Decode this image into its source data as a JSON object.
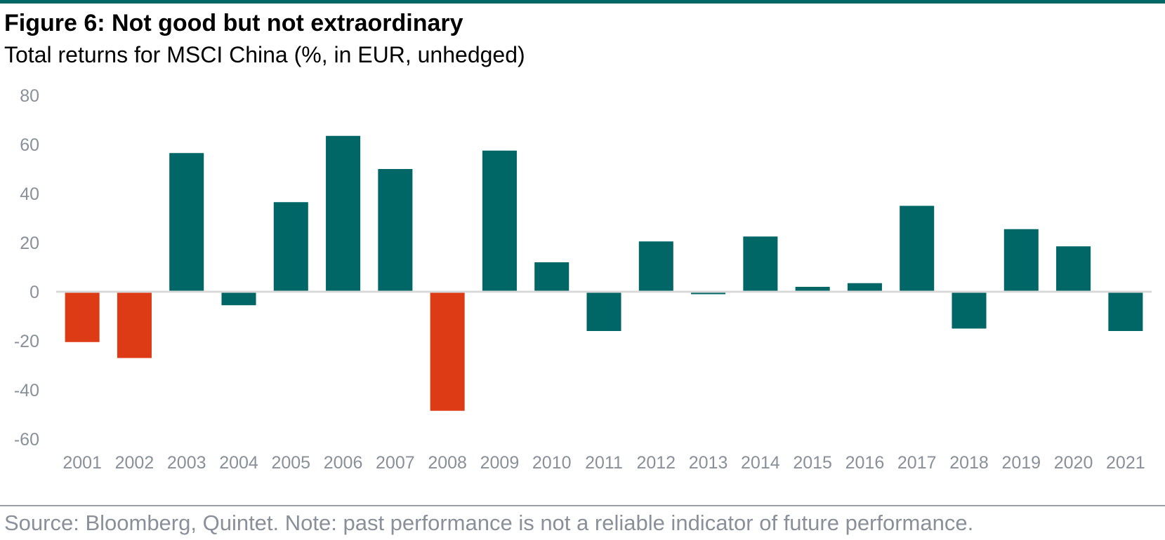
{
  "figure": {
    "title": "Figure 6: Not good but not extraordinary",
    "subtitle": "Total returns for MSCI China (%, in EUR, unhedged)",
    "source": "Source: Bloomberg, Quintet. Note: past performance is not a reliable indicator of future performance."
  },
  "colors": {
    "accent": "#006666",
    "negative_highlight": "#dd3a16",
    "axis_text": "#8a9099",
    "zero_line": "#d9d9d9"
  },
  "chart_data": {
    "type": "bar",
    "title": "Figure 6: Not good but not extraordinary",
    "subtitle": "Total returns for MSCI China (%, in EUR, unhedged)",
    "xlabel": "",
    "ylabel": "",
    "ylim": [
      -60,
      80
    ],
    "yticks": [
      80,
      60,
      40,
      20,
      0,
      -20,
      -40,
      -60
    ],
    "grid": false,
    "legend": "none",
    "categories": [
      "2001",
      "2002",
      "2003",
      "2004",
      "2005",
      "2006",
      "2007",
      "2008",
      "2009",
      "2010",
      "2011",
      "2012",
      "2013",
      "2014",
      "2015",
      "2016",
      "2017",
      "2018",
      "2019",
      "2020",
      "2021"
    ],
    "values": [
      -20.5,
      -27,
      56.5,
      -5.5,
      36.5,
      63.5,
      50,
      -48.5,
      57.5,
      12,
      -16,
      20.5,
      -1,
      22.5,
      2,
      3.5,
      35,
      -15,
      25.5,
      18.5,
      -16
    ],
    "highlighted": [
      "2001",
      "2002",
      "2008"
    ]
  }
}
